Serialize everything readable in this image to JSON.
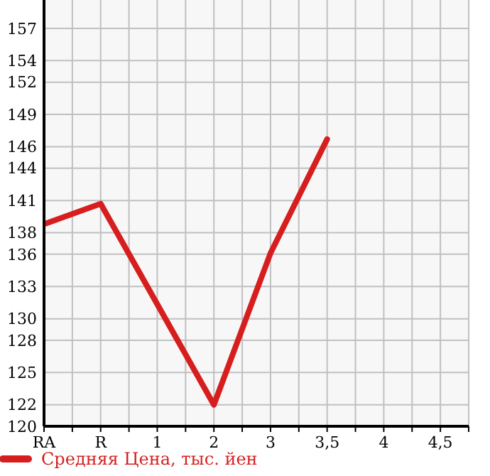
{
  "chart_data": {
    "type": "line",
    "categories": [
      "RA",
      "R",
      "1",
      "2",
      "3",
      "3,5",
      "4",
      "4,5"
    ],
    "series": [
      {
        "name": "Средняя Цена, тыс. йен",
        "color": "#d71e1e",
        "values": [
          138.8,
          140.7,
          null,
          122,
          136.1,
          146.7,
          null,
          null
        ]
      }
    ],
    "ylim": [
      120,
      159.64
    ],
    "yticks": [
      120,
      122,
      125,
      128,
      130,
      133,
      136,
      138,
      141,
      144,
      146,
      149,
      152,
      154,
      157
    ],
    "grid": true,
    "legend": "bottom left",
    "marker": "none",
    "line_style": "solid"
  }
}
